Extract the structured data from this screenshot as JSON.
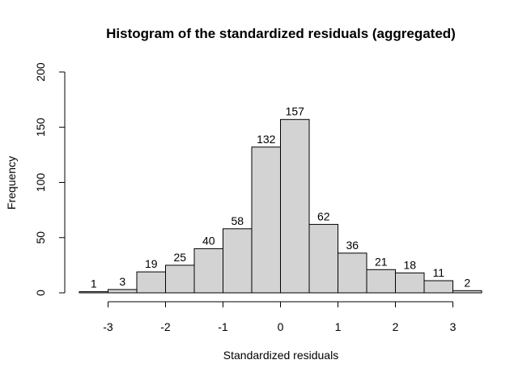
{
  "chart_data": {
    "type": "bar",
    "title": "Histogram of the standardized residuals (aggregated)",
    "xlabel": "Standardized residuals",
    "ylabel": "Frequency",
    "bin_edges": [
      -3.5,
      -3.0,
      -2.5,
      -2.0,
      -1.5,
      -1.0,
      -0.5,
      0.0,
      0.5,
      1.0,
      1.5,
      2.0,
      2.5,
      3.0,
      3.5
    ],
    "values": [
      1,
      3,
      19,
      25,
      40,
      58,
      132,
      157,
      62,
      36,
      21,
      18,
      11,
      2
    ],
    "xticks": [
      -3,
      -2,
      -1,
      0,
      1,
      2,
      3
    ],
    "xtick_labels": [
      "-3",
      "-2",
      "-1",
      "0",
      "1",
      "2",
      "3"
    ],
    "yticks": [
      0,
      50,
      100,
      150,
      200
    ],
    "ytick_labels": [
      "0",
      "50",
      "100",
      "150",
      "200"
    ],
    "xlim": [
      -3.5,
      3.5
    ],
    "ylim": [
      0,
      200
    ],
    "bar_color": "#d3d3d3",
    "edge_color": "#000000",
    "grid": false,
    "legend": "none"
  }
}
